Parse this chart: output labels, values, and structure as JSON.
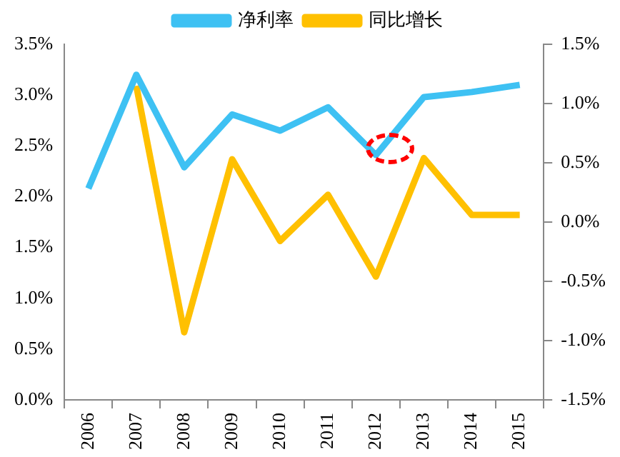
{
  "chart_data": {
    "type": "line",
    "categories": [
      "2006",
      "2007",
      "2008",
      "2009",
      "2010",
      "2011",
      "2012",
      "2013",
      "2014",
      "2015"
    ],
    "series": [
      {
        "name": "净利率",
        "color": "#3ec1f3",
        "values": [
          2.08,
          3.2,
          2.29,
          2.81,
          2.65,
          2.88,
          2.41,
          2.98,
          3.03,
          3.1
        ]
      },
      {
        "name": "同比增长",
        "color": "#ffc000",
        "axis": "y2",
        "values": [
          null,
          1.15,
          -0.93,
          0.53,
          -0.16,
          0.23,
          -0.46,
          0.54,
          0.06,
          0.06
        ]
      }
    ],
    "ylim": [
      0,
      3.5
    ],
    "yticks": [
      {
        "value": 0,
        "label": "0.0%"
      },
      {
        "value": 0.5,
        "label": "0.5%"
      },
      {
        "value": 1,
        "label": "1.0%"
      },
      {
        "value": 1.5,
        "label": "1.5%"
      },
      {
        "value": 2,
        "label": "2.0%"
      },
      {
        "value": 2.5,
        "label": "2.5%"
      },
      {
        "value": 3,
        "label": "3.0%"
      },
      {
        "value": 3.5,
        "label": "3.5%"
      }
    ],
    "y2lim": [
      -1.5,
      1.5
    ],
    "y2ticks": [
      {
        "value": -1.5,
        "label": "-1.5%"
      },
      {
        "value": -1,
        "label": "-1.0%"
      },
      {
        "value": -0.5,
        "label": "-0.5%"
      },
      {
        "value": 0,
        "label": "0.0%"
      },
      {
        "value": 0.5,
        "label": "0.5%"
      },
      {
        "value": 1,
        "label": "1.0%"
      },
      {
        "value": 1.5,
        "label": "1.5%"
      }
    ],
    "grid": false,
    "legend": "top",
    "marker": "none",
    "line_style": "solid"
  }
}
